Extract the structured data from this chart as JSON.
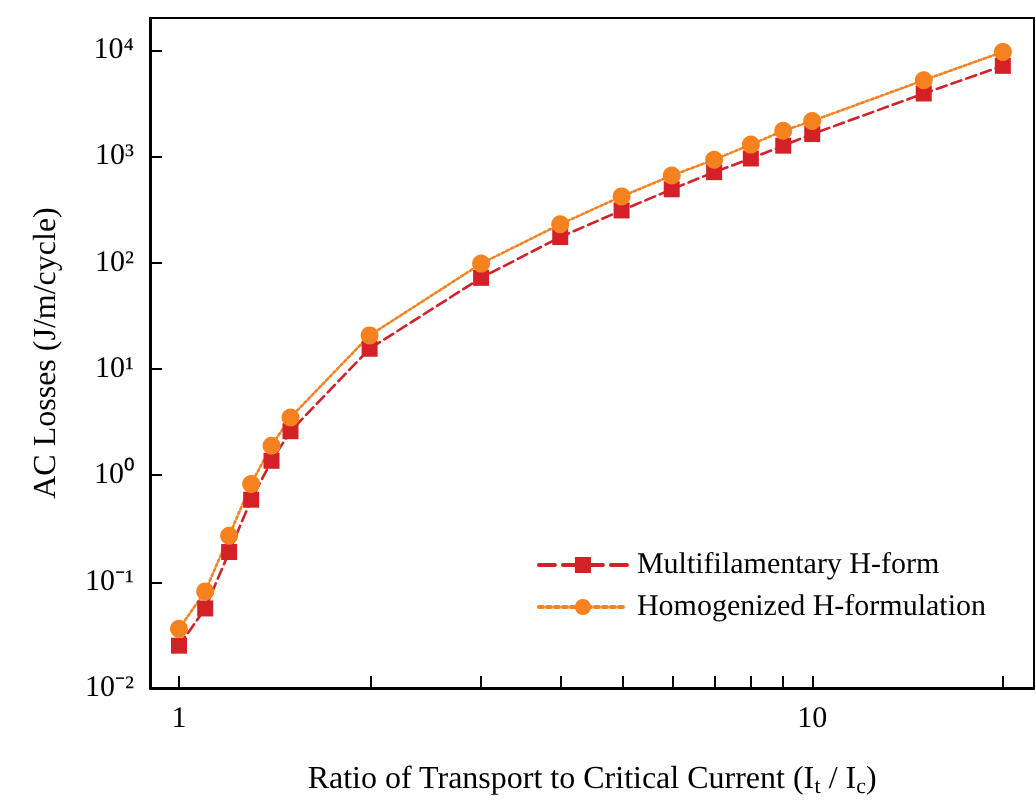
{
  "chart_data": {
    "type": "line",
    "xlabel": "Ratio of Transport to Critical Current (I$_{t}$ / I$_{c}$)",
    "ylabel": "AC Losses (J/m/cycle)",
    "x": [
      1,
      1.1,
      1.2,
      1.3,
      1.4,
      1.5,
      2,
      3,
      4,
      5,
      6,
      7,
      8,
      9,
      10,
      15,
      20
    ],
    "series": [
      {
        "name": "Multifilamentary H-form",
        "color": "#d42027",
        "marker": "square",
        "line_style": "dashed",
        "values": [
          0.025,
          0.056,
          0.19,
          0.59,
          1.37,
          2.6,
          15.5,
          72,
          174,
          310,
          490,
          710,
          955,
          1260,
          1620,
          3900,
          7100
        ]
      },
      {
        "name": "Homogenized H-formulation",
        "color": "#f5821f",
        "marker": "circle",
        "line_style": "dotted",
        "values": [
          0.036,
          0.081,
          0.27,
          0.83,
          1.9,
          3.5,
          20.7,
          98,
          230,
          420,
          660,
          930,
          1290,
          1740,
          2150,
          5200,
          9600
        ]
      }
    ],
    "log": "xy",
    "xlim": [
      0.9,
      22.4
    ],
    "xticks": [
      1,
      {
        "value": 2,
        "label": null
      },
      {
        "value": 3,
        "label": null
      },
      {
        "value": 4,
        "label": null
      },
      {
        "value": 5,
        "label": null
      },
      {
        "value": 6,
        "label": null
      },
      {
        "value": 7,
        "label": null
      },
      {
        "value": 8,
        "label": null
      },
      {
        "value": 9,
        "label": null
      },
      10,
      {
        "value": 20,
        "label": null
      }
    ],
    "ylim": [
      0.01,
      20000
    ],
    "yticks": [
      {
        "value": 0.01,
        "label": "10⁻²"
      },
      {
        "value": 0.1,
        "label": "10⁻¹"
      },
      {
        "value": 1,
        "label": "10⁰"
      },
      {
        "value": 10,
        "label": "10¹"
      },
      {
        "value": 100,
        "label": "10²"
      },
      {
        "value": 1000,
        "label": "10³"
      },
      {
        "value": 10000,
        "label": "10⁴"
      }
    ],
    "grid": false,
    "legend": "bottom right"
  }
}
